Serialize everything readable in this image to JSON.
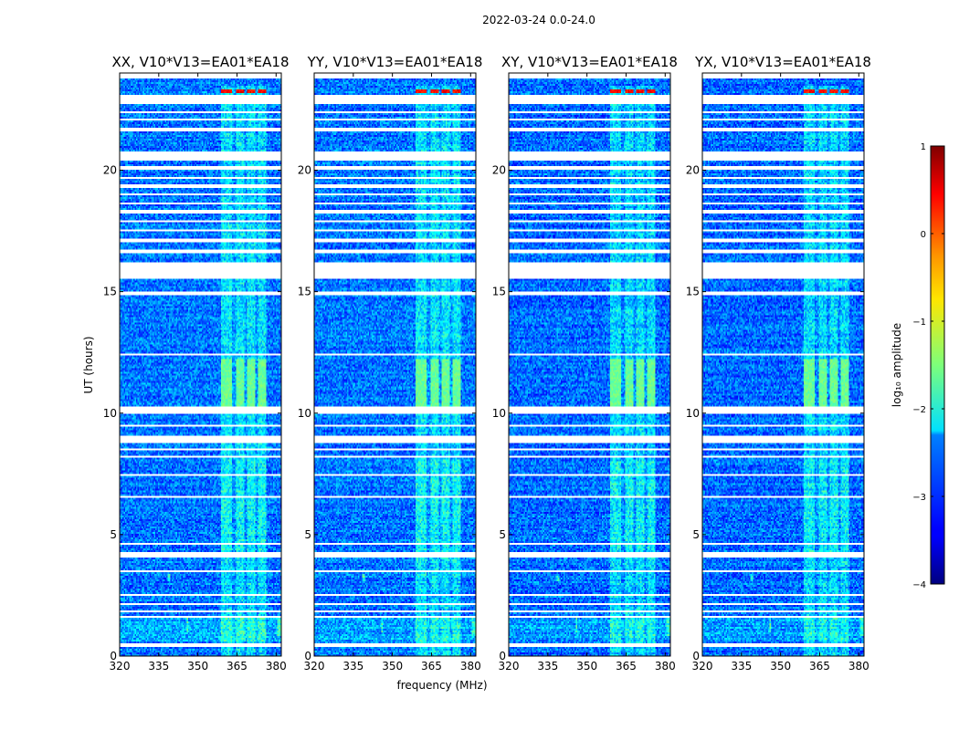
{
  "chart_data": {
    "type": "heatmap",
    "suptitle": "2022-03-24 0.0-24.0",
    "xlabel": "frequency (MHz)",
    "ylabel": "UT (hours)",
    "xlim": [
      320,
      382
    ],
    "ylim": [
      0,
      24
    ],
    "xticks": [
      320,
      335,
      350,
      365,
      380
    ],
    "yticks": [
      0,
      5,
      10,
      15,
      20
    ],
    "colorbar": {
      "label": "log₁₀ amplitude",
      "range": [
        -4,
        1
      ],
      "ticks": [
        1,
        0,
        -1,
        -2,
        -3,
        -4
      ],
      "colormap": "jet"
    },
    "panels": [
      {
        "title": "XX, V10*V13=EA01*EA18"
      },
      {
        "title": "YY, V10*V13=EA01*EA18"
      },
      {
        "title": "XY, V10*V13=EA01*EA18"
      },
      {
        "title": "YX, V10*V13=EA01*EA18"
      }
    ],
    "background_level": -2.8,
    "rfi_band_mhz": [
      359,
      376
    ],
    "rfi_subchannels_mhz": [
      [
        359,
        363
      ],
      [
        364.5,
        368
      ],
      [
        369,
        372
      ],
      [
        373,
        376
      ]
    ],
    "rfi_bright_hours": [
      [
        10.2,
        12.2
      ]
    ],
    "rfi_bright_level": -1.6,
    "narrowband_rfi_mhz": [
      [
        346,
        1.0,
        1.6
      ],
      [
        339,
        3.1,
        3.4
      ]
    ],
    "flagged_hours": [
      [
        0.38,
        0.55
      ],
      [
        1.58,
        1.68
      ],
      [
        1.78,
        1.85
      ],
      [
        2.1,
        2.18
      ],
      [
        2.48,
        2.56
      ],
      [
        3.45,
        3.52
      ],
      [
        4.05,
        4.25
      ],
      [
        4.6,
        4.66
      ],
      [
        6.55,
        6.62
      ],
      [
        7.1,
        7.16
      ],
      [
        7.4,
        7.47
      ],
      [
        8.2,
        8.28
      ],
      [
        8.45,
        8.52
      ],
      [
        8.8,
        9.05
      ],
      [
        9.45,
        9.52
      ],
      [
        10.0,
        10.3
      ],
      [
        12.4,
        12.47
      ],
      [
        14.85,
        15.0
      ],
      [
        15.55,
        16.2
      ],
      [
        16.6,
        16.75
      ],
      [
        17.05,
        17.15
      ],
      [
        17.45,
        17.55
      ],
      [
        17.85,
        17.95
      ],
      [
        18.25,
        18.35
      ],
      [
        18.6,
        18.7
      ],
      [
        18.95,
        19.05
      ],
      [
        19.3,
        19.4
      ],
      [
        19.65,
        19.75
      ],
      [
        20.0,
        20.15
      ],
      [
        20.4,
        20.8
      ],
      [
        21.6,
        21.72
      ],
      [
        22.05,
        22.12
      ],
      [
        22.35,
        22.42
      ],
      [
        22.75,
        23.12
      ]
    ],
    "ticks_in_data_units_only": true
  }
}
